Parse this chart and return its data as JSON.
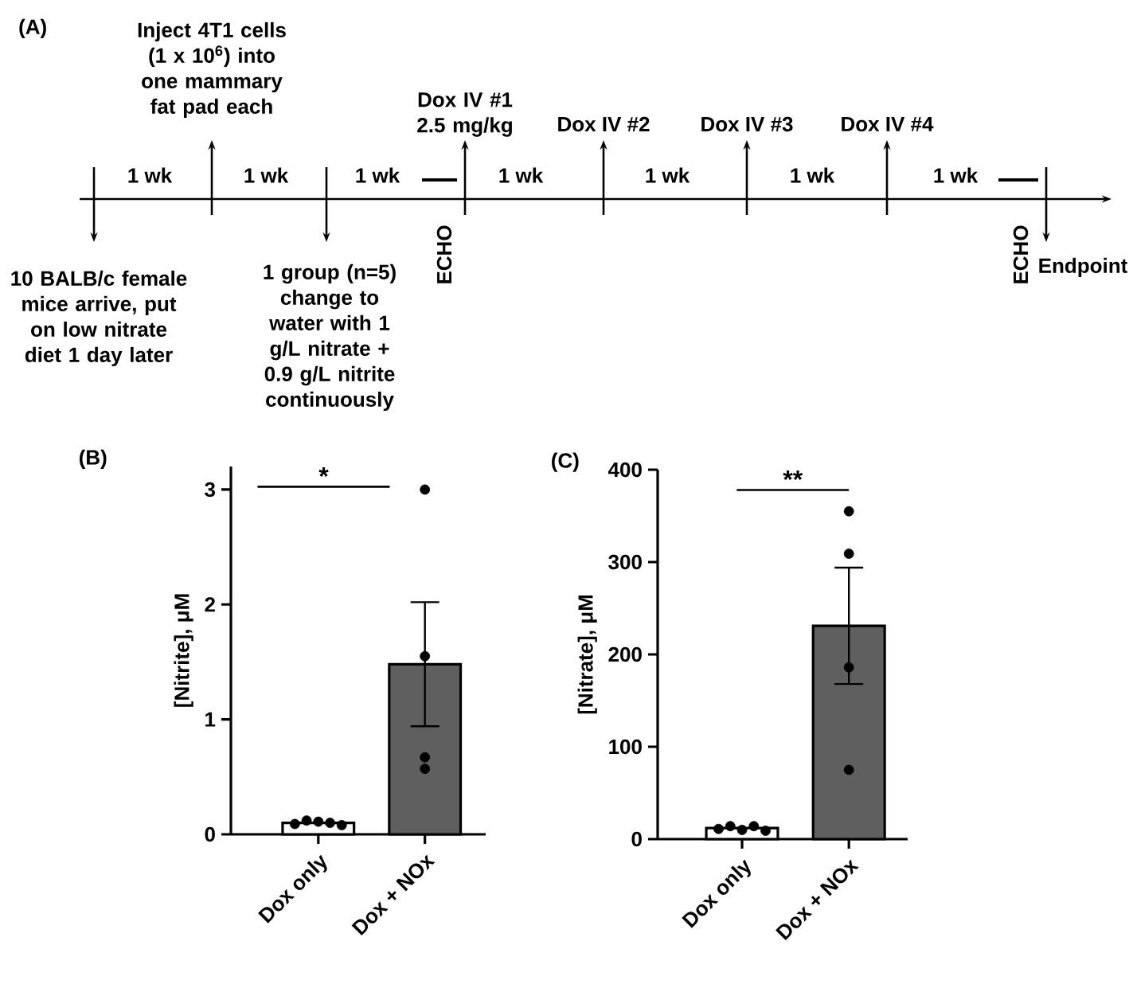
{
  "chart_data": [
    {
      "type": "other",
      "title": "(A)",
      "annotations": [
        "1 wk",
        "1 wk",
        "1 wk",
        "1 wk",
        "1 wk",
        "1 wk",
        "1 wk",
        "Inject 4T1 cells (1 x 10$^{6}$) into one mammary fat pad each",
        "10 BALB/c female mice arrive, put on low nitrate diet 1 day later",
        "1 group (n=5) change to water with 1 g/L nitrate + 0.9 g/L nitrite continuously",
        "Dox IV #1 2.5 mg/kg",
        "Dox IV #2",
        "Dox IV #3",
        "Dox IV #4",
        "ECHO",
        "ECHO",
        "Endpoint"
      ]
    },
    {
      "type": "bar",
      "title": "(B)",
      "ylabel": "[Nitrite], μM",
      "categories": [
        "Dox only",
        "Dox + NOx"
      ],
      "ylim": [
        0,
        3.2
      ],
      "yticks": [
        0,
        1,
        2,
        3
      ],
      "annotations": [
        "*"
      ],
      "series": [
        {
          "type": "bar",
          "colors": [
            "#ffffff",
            "#5f5f5f"
          ],
          "values": [
            0.1,
            1.48
          ],
          "errors": [
            null,
            0.54
          ]
        },
        {
          "type": "scatter",
          "color": "#000000",
          "marker": "circle",
          "x": [
            "Dox only",
            "Dox only",
            "Dox only",
            "Dox only",
            "Dox only",
            "Dox + NOx",
            "Dox + NOx",
            "Dox + NOx",
            "Dox + NOx"
          ],
          "values": [
            0.09,
            0.12,
            0.11,
            0.1,
            0.08,
            3.0,
            1.55,
            0.67,
            0.57
          ]
        }
      ]
    },
    {
      "type": "bar",
      "title": "(C)",
      "ylabel": "[Nitrate], μM",
      "categories": [
        "Dox only",
        "Dox + NOx"
      ],
      "ylim": [
        0,
        400
      ],
      "yticks": [
        0,
        100,
        200,
        300,
        400
      ],
      "annotations": [
        "**"
      ],
      "series": [
        {
          "type": "bar",
          "colors": [
            "#ffffff",
            "#5f5f5f"
          ],
          "values": [
            12,
            231
          ],
          "errors": [
            null,
            63
          ]
        },
        {
          "type": "scatter",
          "color": "#000000",
          "marker": "circle",
          "x": [
            "Dox only",
            "Dox only",
            "Dox only",
            "Dox only",
            "Dox only",
            "Dox + NOx",
            "Dox + NOx",
            "Dox + NOx",
            "Dox + NOx"
          ],
          "values": [
            11,
            14,
            10,
            14,
            9,
            355,
            309,
            186,
            75
          ]
        }
      ]
    }
  ]
}
